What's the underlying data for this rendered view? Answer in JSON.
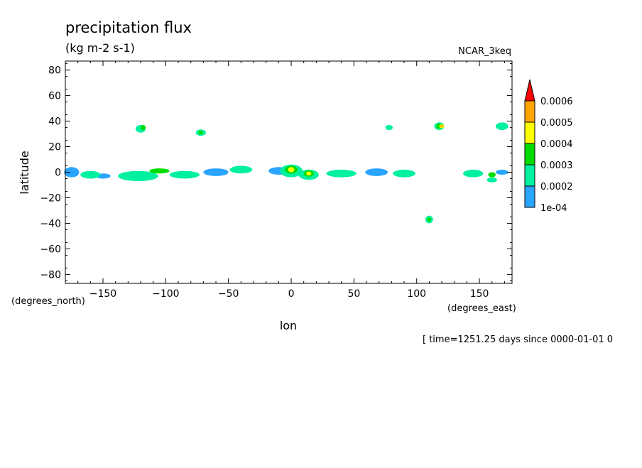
{
  "chart_data": {
    "type": "heatmap",
    "title": "precipitation flux",
    "units": "(kg m-2 s-1)",
    "dataset_label": "NCAR_3keq",
    "xlabel": "lon",
    "ylabel": "latitude",
    "x_units_label": "(degrees_east)",
    "y_units_label": "(degrees_north)",
    "time_label": "[ time=1251.25 days since 0000-01-01 0",
    "xlim": [
      -180,
      176
    ],
    "ylim": [
      -87,
      87
    ],
    "x_ticks": [
      -150,
      -100,
      -50,
      0,
      50,
      100,
      150
    ],
    "x_tick_labels": [
      "−150",
      "−100",
      "−50",
      "0",
      "50",
      "100",
      "150"
    ],
    "y_ticks": [
      80,
      60,
      40,
      20,
      0,
      -20,
      -40,
      -60,
      -80
    ],
    "y_tick_labels": [
      "80",
      "60",
      "40",
      "20",
      "0",
      "−20",
      "−40",
      "−60",
      "−80"
    ],
    "levels": [
      0.0001,
      0.0002,
      0.0003,
      0.0004,
      0.0005,
      0.0006
    ],
    "level_labels": [
      "1e-04",
      "0.0002",
      "0.0003",
      "0.0004",
      "0.0005",
      "0.0006"
    ],
    "colors": [
      "#2aa5ff",
      "#00f0a0",
      "#00dc00",
      "#ffff00",
      "#ffa500",
      "#ff0000"
    ],
    "regions": [
      {
        "lon": -175,
        "lat": 0,
        "rx": 6,
        "ry": 4,
        "level": 1
      },
      {
        "lon": -160,
        "lat": -2,
        "rx": 8,
        "ry": 3,
        "level": 2
      },
      {
        "lon": -150,
        "lat": -3,
        "rx": 6,
        "ry": 2,
        "level": 1
      },
      {
        "lon": -122,
        "lat": -3,
        "rx": 16,
        "ry": 4,
        "level": 2
      },
      {
        "lon": -105,
        "lat": 1,
        "rx": 8,
        "ry": 2,
        "level": 3
      },
      {
        "lon": -85,
        "lat": -2,
        "rx": 12,
        "ry": 3,
        "level": 2
      },
      {
        "lon": -60,
        "lat": 0,
        "rx": 10,
        "ry": 3,
        "level": 1
      },
      {
        "lon": -40,
        "lat": 2,
        "rx": 9,
        "ry": 3,
        "level": 2
      },
      {
        "lon": -10,
        "lat": 1,
        "rx": 8,
        "ry": 3,
        "level": 1
      },
      {
        "lon": 0,
        "lat": 1,
        "rx": 9,
        "ry": 5,
        "level": 2
      },
      {
        "lon": 0,
        "lat": 2,
        "rx": 5,
        "ry": 3,
        "level": 3
      },
      {
        "lon": 0,
        "lat": 2,
        "rx": 2.5,
        "ry": 2,
        "level": 4
      },
      {
        "lon": 14,
        "lat": -2,
        "rx": 8,
        "ry": 4,
        "level": 2
      },
      {
        "lon": 14,
        "lat": -1,
        "rx": 4,
        "ry": 2.5,
        "level": 3
      },
      {
        "lon": 14,
        "lat": -1,
        "rx": 2,
        "ry": 1.5,
        "level": 4
      },
      {
        "lon": 40,
        "lat": -1,
        "rx": 12,
        "ry": 3,
        "level": 2
      },
      {
        "lon": 68,
        "lat": 0,
        "rx": 9,
        "ry": 3,
        "level": 1
      },
      {
        "lon": 90,
        "lat": -1,
        "rx": 9,
        "ry": 3,
        "level": 2
      },
      {
        "lon": 145,
        "lat": -1,
        "rx": 8,
        "ry": 3,
        "level": 2
      },
      {
        "lon": 160,
        "lat": -6,
        "rx": 4,
        "ry": 2,
        "level": 2
      },
      {
        "lon": 168,
        "lat": 0,
        "rx": 5,
        "ry": 2,
        "level": 1
      },
      {
        "lon": -120,
        "lat": 34,
        "rx": 4,
        "ry": 3,
        "level": 2
      },
      {
        "lon": -118,
        "lat": 35,
        "rx": 2,
        "ry": 2,
        "level": 3
      },
      {
        "lon": -72,
        "lat": 31,
        "rx": 4,
        "ry": 2.5,
        "level": 2
      },
      {
        "lon": -72,
        "lat": 31,
        "rx": 2,
        "ry": 1.5,
        "level": 3
      },
      {
        "lon": 78,
        "lat": 35,
        "rx": 3,
        "ry": 2,
        "level": 2
      },
      {
        "lon": 118,
        "lat": 36,
        "rx": 4,
        "ry": 3,
        "level": 2
      },
      {
        "lon": 118,
        "lat": 36,
        "rx": 2.5,
        "ry": 2,
        "level": 3
      },
      {
        "lon": 120,
        "lat": 36,
        "rx": 2,
        "ry": 1.5,
        "level": 4
      },
      {
        "lon": 120,
        "lat": 36,
        "rx": 1,
        "ry": 1,
        "level": 5
      },
      {
        "lon": 168,
        "lat": 36,
        "rx": 5,
        "ry": 3,
        "level": 2
      },
      {
        "lon": 110,
        "lat": -37,
        "rx": 3,
        "ry": 3,
        "level": 2
      },
      {
        "lon": 110,
        "lat": -37,
        "rx": 1.5,
        "ry": 1.5,
        "level": 3
      },
      {
        "lon": 160,
        "lat": -2,
        "rx": 3,
        "ry": 2,
        "level": 3
      }
    ]
  }
}
